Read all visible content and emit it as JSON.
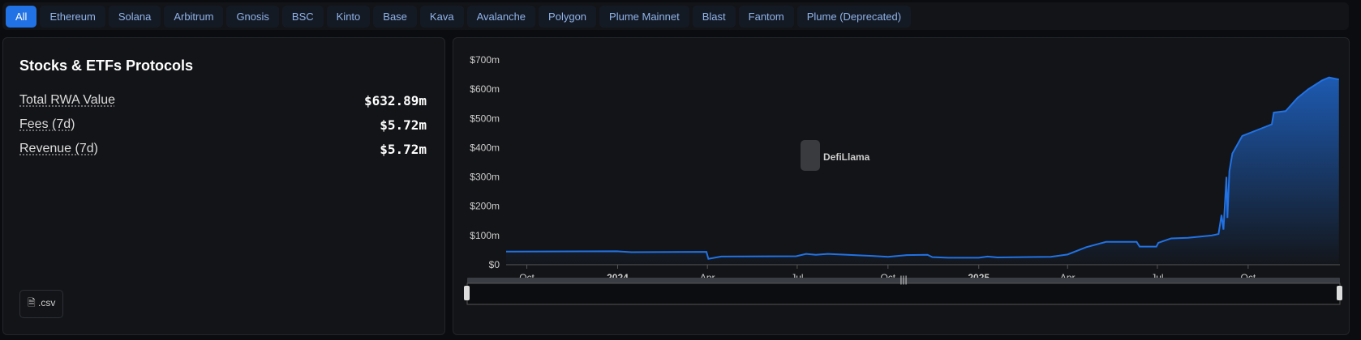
{
  "tabs": [
    "All",
    "Ethereum",
    "Solana",
    "Arbitrum",
    "Gnosis",
    "BSC",
    "Kinto",
    "Base",
    "Kava",
    "Avalanche",
    "Polygon",
    "Plume Mainnet",
    "Blast",
    "Fantom",
    "Plume (Deprecated)"
  ],
  "active_tab": "All",
  "summary": {
    "title": "Stocks & ETFs Protocols",
    "rows": [
      {
        "label": "Total RWA Value",
        "value": "$632.89m"
      },
      {
        "label": "Fees (7d)",
        "value": "$5.72m"
      },
      {
        "label": "Revenue (7d)",
        "value": "$5.72m"
      }
    ],
    "csv_label": ".csv"
  },
  "watermark": "DefiLlama",
  "chart_data": {
    "type": "area",
    "color": "#2172e5",
    "ylim": [
      0,
      700
    ],
    "y_ticks": [
      "$0",
      "$100m",
      "$200m",
      "$300m",
      "$400m",
      "$500m",
      "$600m",
      "$700m"
    ],
    "x_ticks": [
      {
        "date": "2023-10-01",
        "label": "Oct"
      },
      {
        "date": "2024-01-01",
        "label": "2024",
        "bold": true
      },
      {
        "date": "2024-04-01",
        "label": "Apr"
      },
      {
        "date": "2024-07-01",
        "label": "Jul"
      },
      {
        "date": "2024-10-01",
        "label": "Oct"
      },
      {
        "date": "2025-01-01",
        "label": "2025",
        "bold": true
      },
      {
        "date": "2025-04-01",
        "label": "Apr"
      },
      {
        "date": "2025-07-01",
        "label": "Jul"
      },
      {
        "date": "2025-10-01",
        "label": "Oct"
      }
    ],
    "xlim": [
      "2023-09-10",
      "2026-01-02"
    ],
    "points": [
      [
        "2023-09-10",
        45
      ],
      [
        "2023-12-31",
        46
      ],
      [
        "2024-01-15",
        43
      ],
      [
        "2024-03-31",
        44
      ],
      [
        "2024-04-02",
        20
      ],
      [
        "2024-04-15",
        28
      ],
      [
        "2024-06-30",
        29
      ],
      [
        "2024-07-10",
        37
      ],
      [
        "2024-07-20",
        34
      ],
      [
        "2024-08-01",
        37
      ],
      [
        "2024-09-01",
        32
      ],
      [
        "2024-09-15",
        30
      ],
      [
        "2024-10-01",
        27
      ],
      [
        "2024-10-20",
        33
      ],
      [
        "2024-11-10",
        34
      ],
      [
        "2024-11-15",
        26
      ],
      [
        "2024-12-01",
        24
      ],
      [
        "2025-01-01",
        24
      ],
      [
        "2025-01-10",
        28
      ],
      [
        "2025-01-20",
        25
      ],
      [
        "2025-03-15",
        27
      ],
      [
        "2025-04-01",
        35
      ],
      [
        "2025-04-20",
        60
      ],
      [
        "2025-05-10",
        78
      ],
      [
        "2025-06-10",
        78
      ],
      [
        "2025-06-13",
        62
      ],
      [
        "2025-06-30",
        62
      ],
      [
        "2025-07-02",
        75
      ],
      [
        "2025-07-15",
        90
      ],
      [
        "2025-08-01",
        92
      ],
      [
        "2025-08-25",
        100
      ],
      [
        "2025-09-01",
        105
      ],
      [
        "2025-09-04",
        170
      ],
      [
        "2025-09-06",
        120
      ],
      [
        "2025-09-09",
        300
      ],
      [
        "2025-09-10",
        160
      ],
      [
        "2025-09-12",
        320
      ],
      [
        "2025-09-15",
        380
      ],
      [
        "2025-09-25",
        440
      ],
      [
        "2025-10-10",
        460
      ],
      [
        "2025-10-25",
        480
      ],
      [
        "2025-10-27",
        520
      ],
      [
        "2025-11-08",
        525
      ],
      [
        "2025-11-20",
        570
      ],
      [
        "2025-12-01",
        600
      ],
      [
        "2025-12-15",
        630
      ],
      [
        "2025-12-22",
        640
      ],
      [
        "2026-01-01",
        632.89
      ]
    ]
  }
}
